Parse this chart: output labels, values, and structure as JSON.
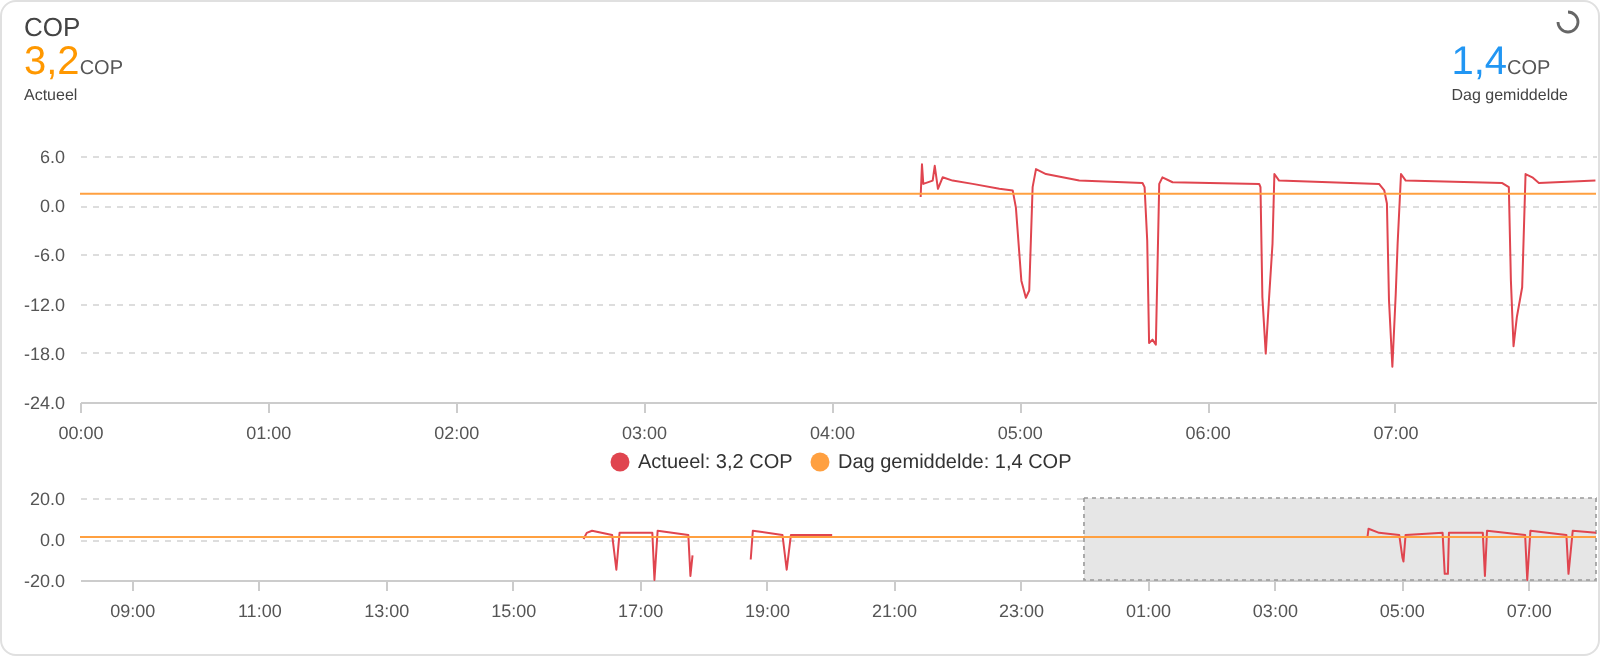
{
  "chart_data": [
    {
      "type": "other",
      "title": "COP",
      "annotations": [
        "3,2",
        "COP",
        "Actueel",
        "1,4",
        "COP",
        "Dag gemiddelde"
      ]
    },
    {
      "type": "line",
      "grid": "y",
      "legend": "bottom",
      "marker": "none",
      "line_style": "solid",
      "xlim": [
        0,
        8.07
      ],
      "xticks": [
        {
          "value": 0,
          "label": "00:00"
        },
        {
          "value": 1,
          "label": "01:00"
        },
        {
          "value": 2,
          "label": "02:00"
        },
        {
          "value": 3,
          "label": "03:00"
        },
        {
          "value": 4,
          "label": "04:00"
        },
        {
          "value": 5,
          "label": "05:00"
        },
        {
          "value": 6,
          "label": "06:00"
        },
        {
          "value": 7,
          "label": "07:00"
        }
      ],
      "ylim": [
        -24,
        6
      ],
      "yticks": [
        {
          "value": -24,
          "label": "-24.0"
        },
        {
          "value": -18,
          "label": "-18.0"
        },
        {
          "value": -12,
          "label": "-12.0"
        },
        {
          "value": -6,
          "label": "-6.0"
        },
        {
          "value": 0,
          "label": "0.0"
        },
        {
          "value": 6,
          "label": "6.0"
        }
      ],
      "series": [
        {
          "name": "Actueel: 3,2 COP",
          "color": "#e0454f",
          "x": [
            4.475,
            4.482,
            4.489,
            4.539,
            4.55,
            4.567,
            4.592,
            4.645,
            4.752,
            4.894,
            4.965,
            4.982,
            5.011,
            5.035,
            5.053,
            5.071,
            5.089,
            5.142,
            5.319,
            5.656,
            5.667,
            5.681,
            5.691,
            5.709,
            5.727,
            5.745,
            5.762,
            5.816,
            6.277,
            6.284,
            6.294,
            6.312,
            6.33,
            6.348,
            6.358,
            6.383,
            6.915,
            6.943,
            6.957,
            6.968,
            6.986,
            7.004,
            7.014,
            7.032,
            7.057,
            7.571,
            7.606,
            7.617,
            7.631,
            7.649,
            7.677,
            7.695,
            7.731,
            7.766,
            8.067
          ],
          "values": [
            1.0,
            5.0,
            2.6,
            3.0,
            4.8,
            2.0,
            3.4,
            3.0,
            2.6,
            2.0,
            1.8,
            -0.3,
            -9.2,
            -11.3,
            -10.4,
            2.2,
            4.4,
            3.8,
            3.0,
            2.7,
            2.2,
            -4.3,
            -16.8,
            -16.4,
            -17.0,
            2.6,
            3.4,
            2.8,
            2.6,
            2.2,
            -11.2,
            -18.1,
            -11.2,
            -4.7,
            3.8,
            3.0,
            2.6,
            1.8,
            0.2,
            -11.6,
            -19.7,
            -10.8,
            -4.7,
            3.8,
            3.0,
            2.7,
            2.2,
            -9.2,
            -17.2,
            -13.6,
            -10.0,
            3.8,
            3.4,
            2.7,
            3.0
          ]
        },
        {
          "name": "Dag gemiddelde: 1,4 COP",
          "color": "#ffa040",
          "x": [
            0,
            8.07
          ],
          "values": [
            1.4,
            1.4
          ]
        }
      ]
    },
    {
      "type": "line",
      "grid": "y",
      "marker": "none",
      "line_style": "solid",
      "xlim": [
        "--01-01T08:11",
        "--01-02T08:04"
      ],
      "xticks": [
        {
          "value": "--01-01T09:00",
          "label": "09:00"
        },
        {
          "value": "--01-01T11:00",
          "label": "11:00"
        },
        {
          "value": "--01-01T13:00",
          "label": "13:00"
        },
        {
          "value": "--01-01T15:00",
          "label": "15:00"
        },
        {
          "value": "--01-01T17:00",
          "label": "17:00"
        },
        {
          "value": "--01-01T19:00",
          "label": "19:00"
        },
        {
          "value": "--01-01T21:00",
          "label": "21:00"
        },
        {
          "value": "--01-01T23:00",
          "label": "23:00"
        },
        {
          "value": "--01-02T01:00",
          "label": "01:00"
        },
        {
          "value": "--01-02T03:00",
          "label": "03:00"
        },
        {
          "value": "--01-02T05:00",
          "label": "05:00"
        },
        {
          "value": "--01-02T07:00",
          "label": "07:00"
        }
      ],
      "ylim": [
        -20,
        20
      ],
      "yticks": [
        {
          "value": -20,
          "label": "-20.0"
        },
        {
          "value": 0,
          "label": "0.0"
        },
        {
          "value": 20,
          "label": "20.0"
        }
      ],
      "bands": [
        {
          "axis": "x",
          "from": "--01-02T00:00",
          "to": "--01-02T08:04",
          "color": "#e6e6e6"
        }
      ],
      "series": [
        {
          "color": "#e0454f",
          "x": [
            "--01-01T16:07",
            "--01-01T16:10",
            "--01-01T16:15",
            "--01-01T16:34",
            "--01-01T16:38",
            "--01-01T16:41",
            "--01-01T17:12",
            "--01-01T17:14",
            "--01-01T17:17",
            "--01-01T17:46",
            "--01-01T17:48",
            "--01-01T17:50",
            "--01-01T18:18",
            "--01-01T18:45",
            "--01-01T18:47",
            "--01-01T19:15",
            "--01-01T19:19",
            "--01-01T19:23",
            "--01-01T20:02",
            "--01-02T00:00",
            "--01-02T04:28",
            "--01-02T04:29",
            "--01-02T04:39",
            "--01-02T04:58",
            "--01-02T05:01",
            "--01-02T05:02",
            "--01-02T05:04",
            "--01-02T05:39",
            "--01-02T05:41",
            "--01-02T05:44",
            "--01-02T05:45",
            "--01-02T06:17",
            "--01-02T06:19",
            "--01-02T06:21",
            "--01-02T06:57",
            "--01-02T06:59",
            "--01-02T07:02",
            "--01-02T07:36",
            "--01-02T07:38",
            "--01-02T07:42",
            "--01-02T08:04"
          ],
          "values": [
            0,
            3,
            4,
            2,
            -15,
            3,
            3,
            -20,
            4,
            2,
            -18,
            -8,
            null,
            -10,
            4,
            2,
            -15,
            2,
            2,
            null,
            1,
            5,
            3,
            2,
            -9,
            -11,
            2,
            3,
            -17,
            -17,
            3,
            3,
            -18,
            4,
            2,
            -20,
            4,
            2,
            -17,
            4,
            3
          ]
        },
        {
          "color": "#ffa040",
          "x": [
            "--01-01T08:11",
            "--01-02T08:04"
          ],
          "values": [
            1,
            1
          ]
        }
      ]
    }
  ]
}
